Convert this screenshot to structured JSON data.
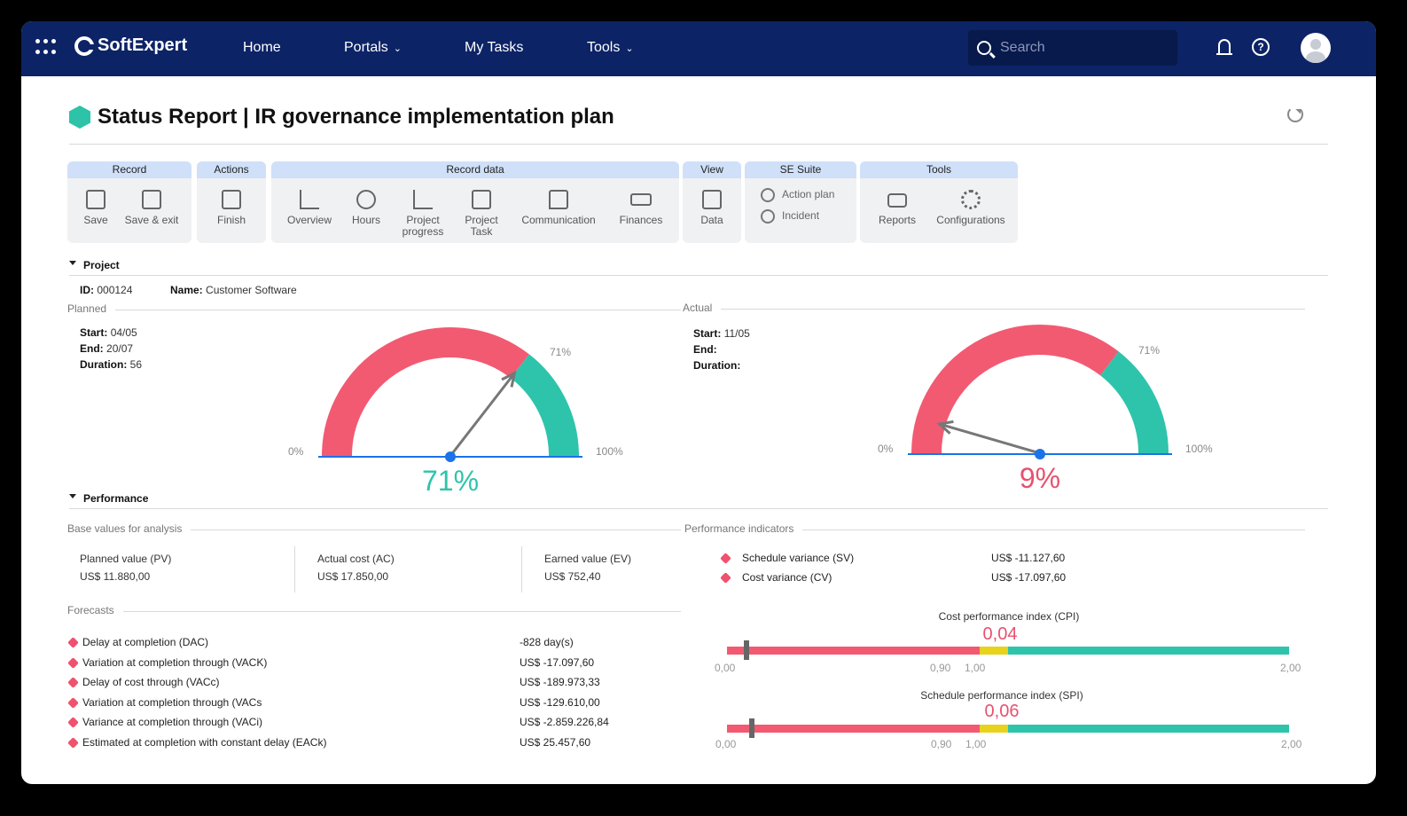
{
  "app": {
    "brand": "SoftExpert"
  },
  "nav": {
    "home": "Home",
    "portals": "Portals",
    "my_tasks": "My Tasks",
    "tools": "Tools"
  },
  "search": {
    "placeholder": "Search"
  },
  "page": {
    "title": "Status Report | IR governance implementation plan"
  },
  "toolbar": {
    "groups": {
      "record": "Record",
      "actions": "Actions",
      "record_data": "Record data",
      "view": "View",
      "se_suite": "SE Suite",
      "tools": "Tools"
    },
    "save": "Save",
    "save_exit": "Save & exit",
    "finish": "Finish",
    "overview": "Overview",
    "hours": "Hours",
    "project_progress": "Project progress",
    "project_task": "Project Task",
    "communication": "Communication",
    "finances": "Finances",
    "data": "Data",
    "action_plan": "Action plan",
    "incident": "Incident",
    "reports": "Reports",
    "configurations": "Configurations"
  },
  "project": {
    "section": "Project",
    "id_label": "ID:",
    "id": "000124",
    "name_label": "Name:",
    "name": "Customer Software",
    "planned": {
      "label": "Planned",
      "start_label": "Start:",
      "start": "04/05",
      "end_label": "End:",
      "end": "20/07",
      "duration_label": "Duration:",
      "duration": "56",
      "percent": 71,
      "percent_text": "71%",
      "threshold": "71%",
      "min": "0%",
      "max": "100%"
    },
    "actual": {
      "label": "Actual",
      "start_label": "Start:",
      "start": "11/05",
      "end_label": "End:",
      "end": "",
      "duration_label": "Duration:",
      "duration": "",
      "percent": 9,
      "percent_text": "9%",
      "threshold": "71%",
      "min": "0%",
      "max": "100%"
    }
  },
  "performance": {
    "section": "Performance",
    "base_values": {
      "label": "Base values for analysis",
      "pv_label": "Planned value (PV)",
      "pv": "US$ 11.880,00",
      "ac_label": "Actual cost (AC)",
      "ac": "US$ 17.850,00",
      "ev_label": "Earned value (EV)",
      "ev": "US$ 752,40"
    },
    "forecasts": {
      "label": "Forecasts",
      "rows": [
        {
          "label": "Delay at completion (DAC)",
          "value": "-828 day(s)"
        },
        {
          "label": "Variation at completion through (VACK)",
          "value": "US$ -17.097,60"
        },
        {
          "label": "Delay of cost through (VACc)",
          "value": "US$ -189.973,33"
        },
        {
          "label": "Variation at completion through (VACs",
          "value": "US$ -129.610,00"
        },
        {
          "label": "Variance at completion through (VACi)",
          "value": "US$ -2.859.226,84"
        },
        {
          "label": "Estimated at completion with constant delay (EACk)",
          "value": "US$ 25.457,60"
        }
      ]
    },
    "indicators": {
      "label": "Performance indicators",
      "sv_label": "Schedule variance (SV)",
      "sv": "US$ -11.127,60",
      "cv_label": "Cost variance (CV)",
      "cv": "US$ -17.097,60"
    },
    "cpi": {
      "title": "Cost performance index (CPI)",
      "value": 0.04,
      "value_text": "0,04",
      "min": "0,00",
      "t1": "0,90",
      "t2": "1,00",
      "max": "2,00"
    },
    "spi": {
      "title": "Schedule performance index (SPI)",
      "value": 0.06,
      "value_text": "0,06",
      "min": "0,00",
      "t1": "0,90",
      "t2": "1,00",
      "max": "2,00"
    }
  },
  "colors": {
    "red": "#f25a72",
    "teal": "#2ec4ab",
    "yellow": "#e8d21b",
    "navy": "#0c2366",
    "blue": "#1a73e8"
  }
}
